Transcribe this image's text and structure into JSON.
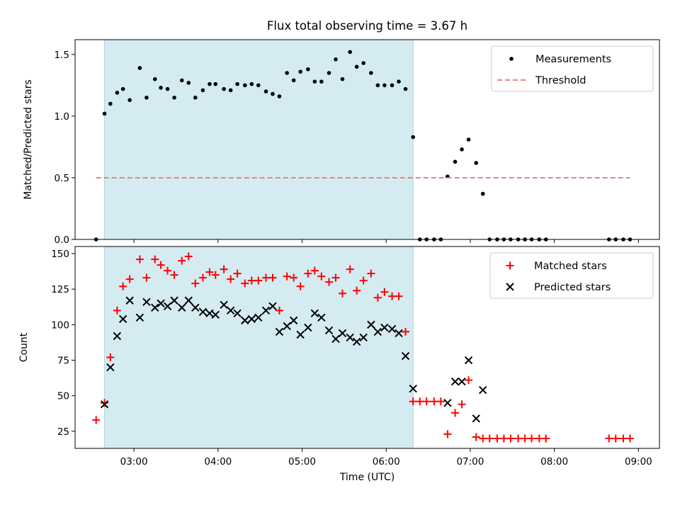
{
  "chart_data": [
    {
      "type": "scatter",
      "title": "Flux total observing time = 3.67 h",
      "xlabel": "",
      "ylabel": "Matched/Predicted stars",
      "xlim": [
        2.3,
        9.25
      ],
      "ylim": [
        0,
        1.62
      ],
      "yticks": [
        0.0,
        0.5,
        1.0,
        1.5
      ],
      "ytick_labels": [
        "0.0",
        "0.5",
        "1.0",
        "1.5"
      ],
      "xticks": [
        3,
        4,
        5,
        6,
        7,
        8,
        9
      ],
      "shaded_region": {
        "x": [
          2.65,
          6.32
        ],
        "color": "#d4ebf1"
      },
      "legend_position": "top-right",
      "series": [
        {
          "name": "Measurements",
          "marker": "dot",
          "color": "#000000",
          "x": [
            2.55,
            2.65,
            2.72,
            2.8,
            2.87,
            2.95,
            3.07,
            3.15,
            3.25,
            3.32,
            3.4,
            3.48,
            3.57,
            3.65,
            3.73,
            3.82,
            3.9,
            3.97,
            4.07,
            4.15,
            4.23,
            4.32,
            4.4,
            4.48,
            4.57,
            4.65,
            4.73,
            4.82,
            4.9,
            4.98,
            5.07,
            5.15,
            5.23,
            5.32,
            5.4,
            5.48,
            5.57,
            5.65,
            5.73,
            5.82,
            5.9,
            5.98,
            6.07,
            6.15,
            6.23,
            6.32,
            6.4,
            6.48,
            6.57,
            6.65,
            6.73,
            6.82,
            6.9,
            6.98,
            7.07,
            7.15,
            7.23,
            7.32,
            7.4,
            7.48,
            7.57,
            7.65,
            7.73,
            7.82,
            7.9,
            8.65,
            8.73,
            8.82,
            8.9
          ],
          "y": [
            0.0,
            1.02,
            1.1,
            1.19,
            1.22,
            1.13,
            1.39,
            1.15,
            1.3,
            1.23,
            1.22,
            1.15,
            1.29,
            1.27,
            1.15,
            1.21,
            1.26,
            1.26,
            1.22,
            1.21,
            1.26,
            1.25,
            1.26,
            1.25,
            1.2,
            1.18,
            1.16,
            1.35,
            1.29,
            1.36,
            1.38,
            1.28,
            1.28,
            1.35,
            1.46,
            1.3,
            1.52,
            1.4,
            1.43,
            1.35,
            1.25,
            1.25,
            1.25,
            1.28,
            1.22,
            0.83,
            0.0,
            0.0,
            0.0,
            0.0,
            0.51,
            0.63,
            0.73,
            0.81,
            0.62,
            0.37,
            0.0,
            0.0,
            0.0,
            0.0,
            0.0,
            0.0,
            0.0,
            0.0,
            0.0,
            0.0,
            0.0,
            0.0,
            0.0
          ]
        },
        {
          "name": "Threshold",
          "type": "line",
          "style": "dashed",
          "color": "#f08080",
          "x": [
            2.55,
            8.9
          ],
          "y": [
            0.5,
            0.5
          ]
        }
      ]
    },
    {
      "type": "scatter",
      "title": "",
      "xlabel": "Time (UTC)",
      "ylabel": "Count",
      "xlim": [
        2.3,
        9.25
      ],
      "ylim": [
        13,
        155
      ],
      "yticks": [
        25,
        50,
        75,
        100,
        125,
        150
      ],
      "ytick_labels": [
        "25",
        "50",
        "75",
        "100",
        "125",
        "150"
      ],
      "xticks": [
        3,
        4,
        5,
        6,
        7,
        8,
        9
      ],
      "xtick_labels": [
        "03:00",
        "04:00",
        "05:00",
        "06:00",
        "07:00",
        "08:00",
        "09:00"
      ],
      "shaded_region": {
        "x": [
          2.65,
          6.32
        ],
        "color": "#d4ebf1"
      },
      "legend_position": "top-right",
      "series": [
        {
          "name": "Matched stars",
          "marker": "plus",
          "color": "#ff0000",
          "x": [
            2.55,
            2.65,
            2.72,
            2.8,
            2.87,
            2.95,
            3.07,
            3.15,
            3.25,
            3.32,
            3.4,
            3.48,
            3.57,
            3.65,
            3.73,
            3.82,
            3.9,
            3.97,
            4.07,
            4.15,
            4.23,
            4.32,
            4.4,
            4.48,
            4.57,
            4.65,
            4.73,
            4.82,
            4.9,
            4.98,
            5.07,
            5.15,
            5.23,
            5.32,
            5.4,
            5.48,
            5.57,
            5.65,
            5.73,
            5.82,
            5.9,
            5.98,
            6.07,
            6.15,
            6.23,
            6.32,
            6.4,
            6.48,
            6.57,
            6.65,
            6.73,
            6.82,
            6.9,
            6.98,
            7.07,
            7.15,
            7.23,
            7.32,
            7.4,
            7.48,
            7.57,
            7.65,
            7.73,
            7.82,
            7.9,
            8.65,
            8.73,
            8.82,
            8.9
          ],
          "y": [
            33,
            45,
            77,
            110,
            127,
            132,
            146,
            133,
            146,
            142,
            138,
            135,
            145,
            148,
            129,
            133,
            137,
            135,
            139,
            132,
            136,
            129,
            131,
            131,
            133,
            133,
            110,
            134,
            133,
            127,
            136,
            138,
            134,
            130,
            133,
            122,
            139,
            124,
            131,
            136,
            119,
            123,
            120,
            120,
            95,
            46,
            46,
            46,
            46,
            46,
            23,
            38,
            44,
            61,
            21,
            20,
            20,
            20,
            20,
            20,
            20,
            20,
            20,
            20,
            20,
            20,
            20,
            20,
            20
          ]
        },
        {
          "name": "Predicted stars",
          "marker": "x",
          "color": "#000000",
          "x": [
            2.65,
            2.72,
            2.8,
            2.87,
            2.95,
            3.07,
            3.15,
            3.25,
            3.32,
            3.4,
            3.48,
            3.57,
            3.65,
            3.73,
            3.82,
            3.9,
            3.97,
            4.07,
            4.15,
            4.23,
            4.32,
            4.4,
            4.48,
            4.57,
            4.65,
            4.73,
            4.82,
            4.9,
            4.98,
            5.07,
            5.15,
            5.23,
            5.32,
            5.4,
            5.48,
            5.57,
            5.65,
            5.73,
            5.82,
            5.9,
            5.98,
            6.07,
            6.15,
            6.23,
            6.32,
            6.73,
            6.82,
            6.9,
            6.98,
            7.07,
            7.15
          ],
          "y": [
            44,
            70,
            92,
            104,
            117,
            105,
            116,
            112,
            115,
            113,
            117,
            112,
            117,
            112,
            109,
            108,
            107,
            114,
            110,
            108,
            103,
            104,
            105,
            110,
            113,
            95,
            99,
            103,
            93,
            98,
            108,
            105,
            96,
            90,
            94,
            91,
            88,
            91,
            100,
            95,
            98,
            97,
            94,
            78,
            55,
            45,
            60,
            60,
            75,
            34,
            54
          ]
        }
      ]
    }
  ]
}
